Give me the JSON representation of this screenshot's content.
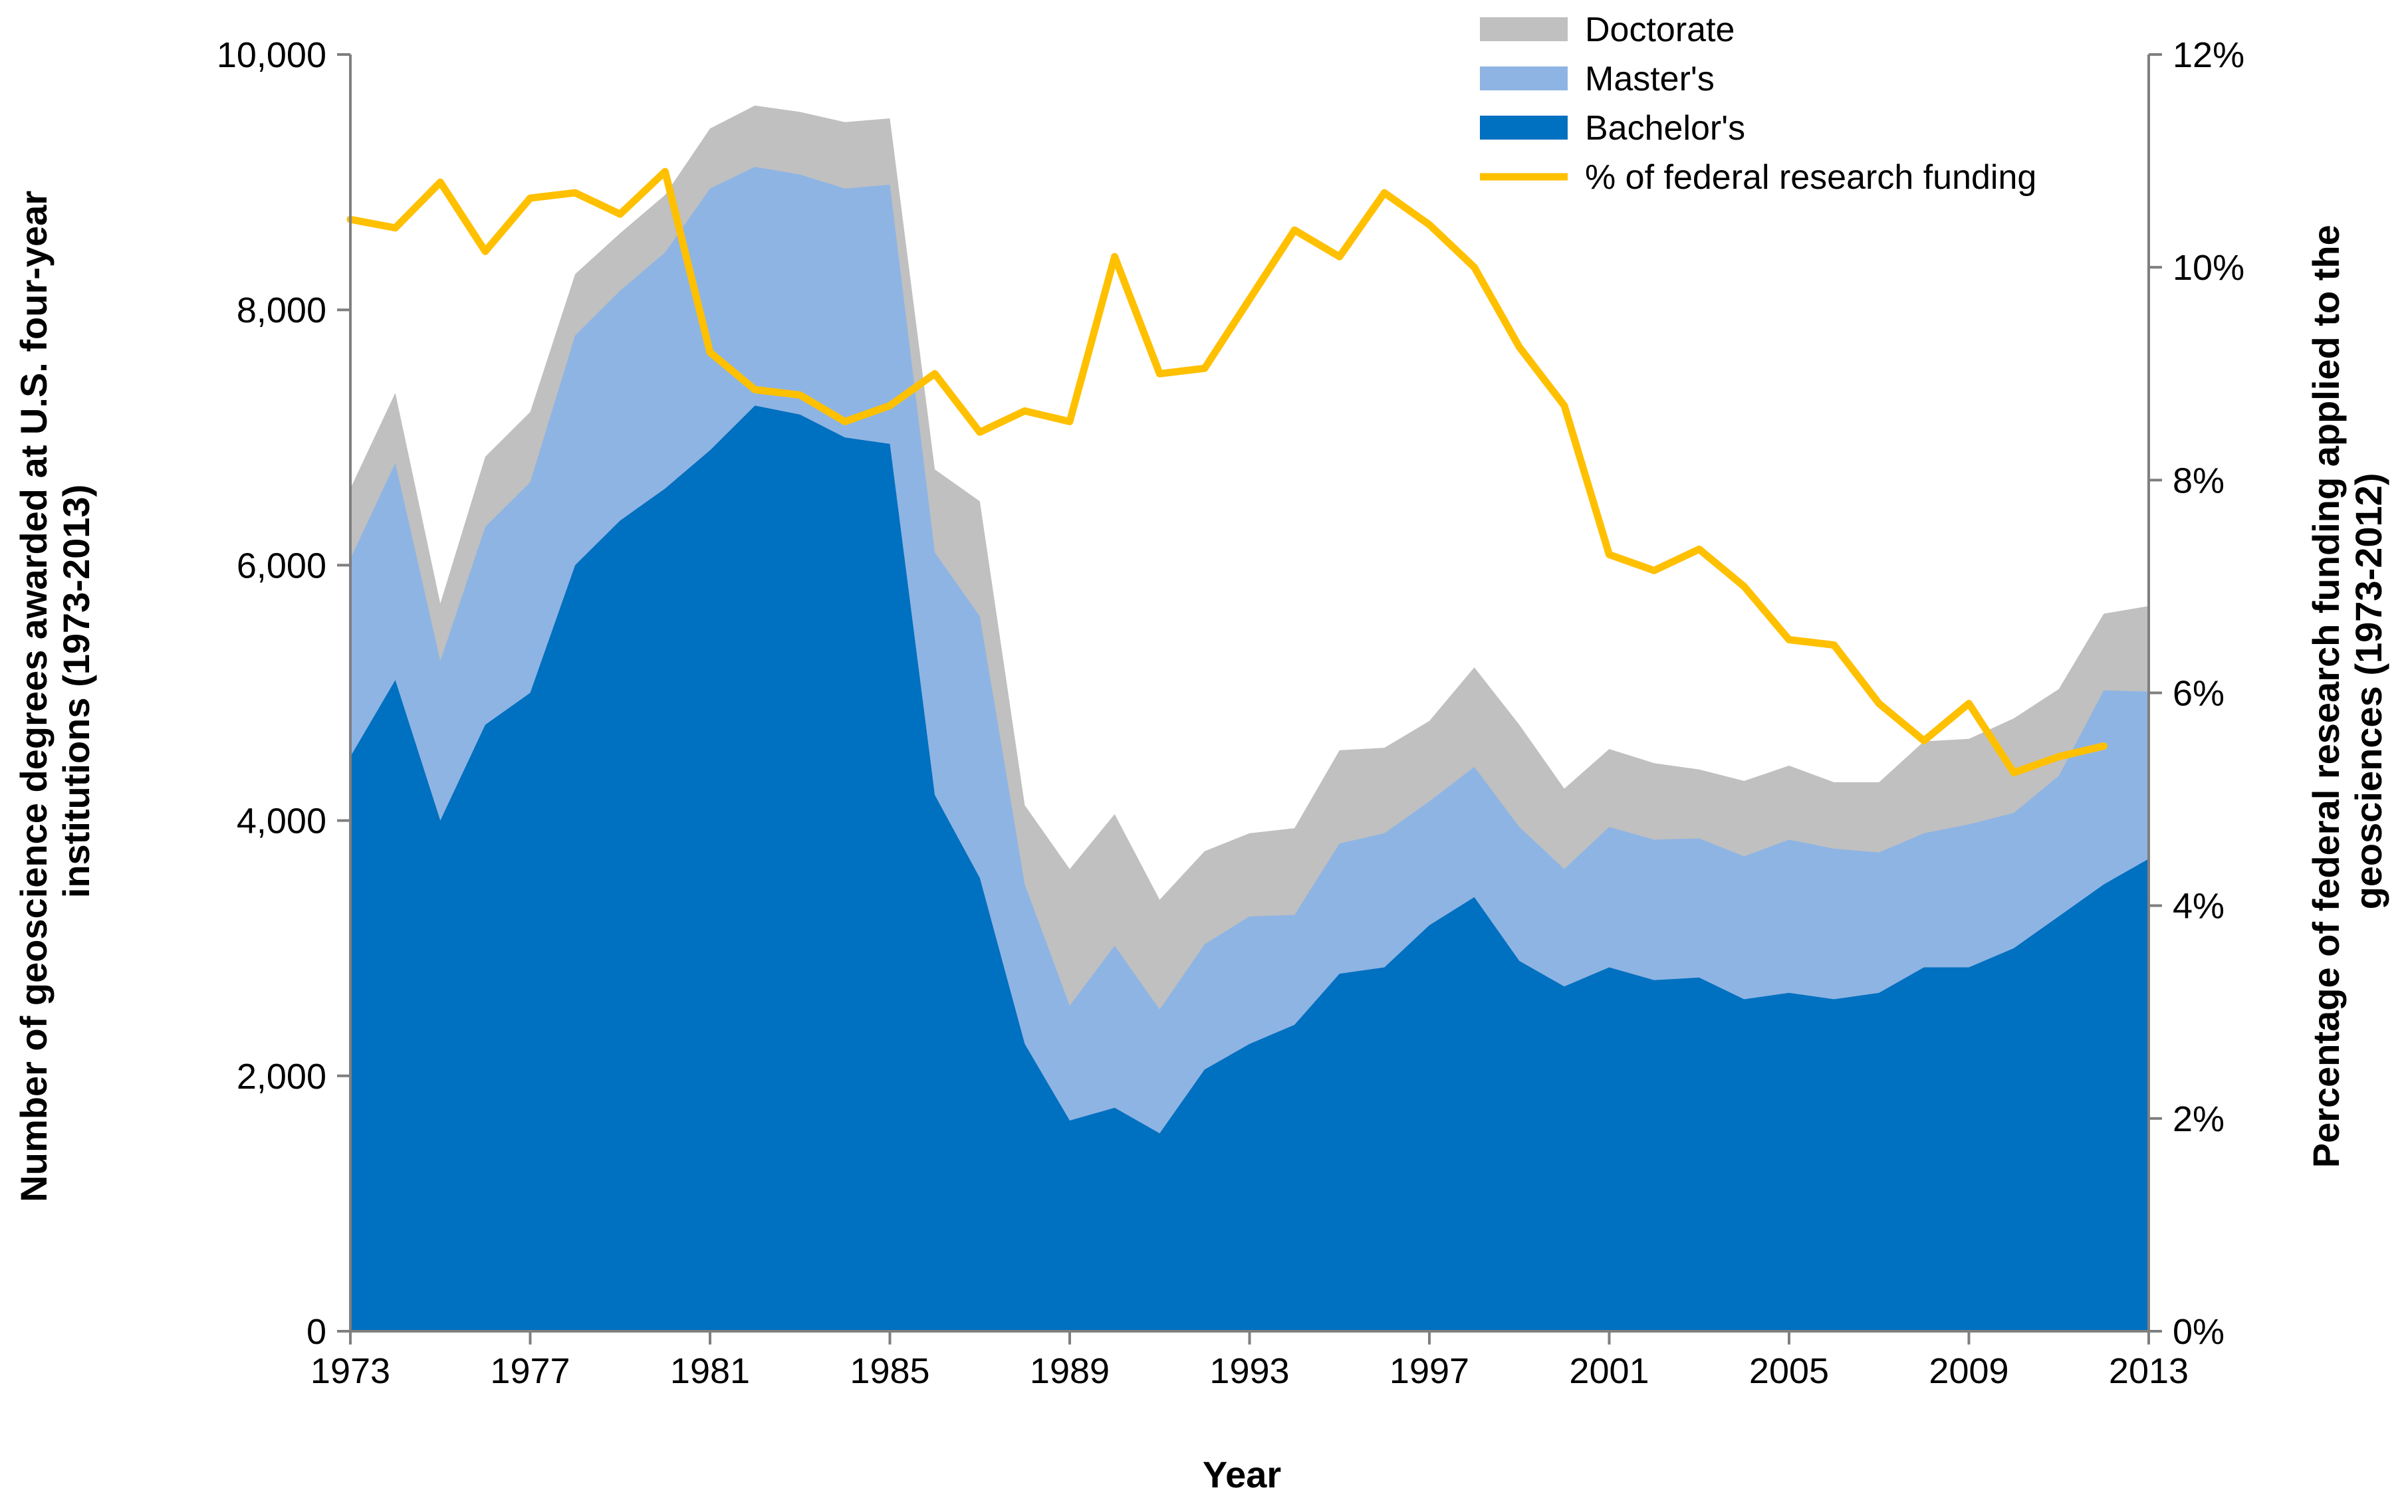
{
  "chart_data": {
    "type": "area",
    "title": "",
    "xlabel": "Year",
    "ylabel": "Number of geoscience degrees awarded at U.S. four-year institutions (1973-2013)",
    "ylabel_lines": [
      "Number of geoscience degrees awarded at U.S. four-year",
      "institutions (1973-2013)"
    ],
    "y2label": "Percentage of federal research funding applied to the geosciences (1973-2012)",
    "y2label_lines": [
      "Percentage of federal research funding applied to the",
      "geosciences (1973-2012)"
    ],
    "xlim": [
      1973,
      2013
    ],
    "ylim": [
      0,
      10000
    ],
    "y2lim": [
      0,
      12
    ],
    "x_ticks": [
      "1973",
      "1977",
      "1981",
      "1985",
      "1989",
      "1993",
      "1997",
      "2001",
      "2005",
      "2009",
      "2013"
    ],
    "x_tick_values": [
      1973,
      1977,
      1981,
      1985,
      1989,
      1993,
      1997,
      2001,
      2005,
      2009,
      2013
    ],
    "y_ticks": [
      "0",
      "2,000",
      "4,000",
      "6,000",
      "8,000",
      "10,000"
    ],
    "y_tick_values": [
      0,
      2000,
      4000,
      6000,
      8000,
      10000
    ],
    "y2_ticks": [
      "0%",
      "2%",
      "4%",
      "6%",
      "8%",
      "10%",
      "12%"
    ],
    "y2_tick_values": [
      0,
      2,
      4,
      6,
      8,
      10,
      12
    ],
    "legend_position": "top-center",
    "x": [
      1973,
      1974,
      1975,
      1976,
      1977,
      1978,
      1979,
      1980,
      1981,
      1982,
      1983,
      1984,
      1985,
      1986,
      1987,
      1988,
      1989,
      1990,
      1991,
      1992,
      1993,
      1994,
      1995,
      1996,
      1997,
      1998,
      1999,
      2000,
      2001,
      2002,
      2003,
      2004,
      2005,
      2006,
      2007,
      2008,
      2009,
      2010,
      2011,
      2012,
      2013
    ],
    "stack_totals": {
      "Bachelor's": [
        4500,
        5100,
        4000,
        4750,
        5000,
        6000,
        6350,
        6600,
        6900,
        7250,
        7180,
        7000,
        6950,
        4200,
        3550,
        2250,
        1650,
        1750,
        1550,
        2050,
        2250,
        2400,
        2800,
        2850,
        3180,
        3400,
        2900,
        2700,
        2850,
        2750,
        2770,
        2600,
        2650,
        2600,
        2650,
        2850,
        2850,
        3000,
        3250,
        3500,
        3700
      ],
      "Master's": [
        6050,
        6800,
        5250,
        6300,
        6650,
        7800,
        8150,
        8450,
        8950,
        9120,
        9060,
        8950,
        8980,
        6100,
        5600,
        3500,
        2550,
        3020,
        2520,
        3030,
        3250,
        3260,
        3820,
        3900,
        4150,
        4420,
        3950,
        3620,
        3950,
        3850,
        3860,
        3720,
        3850,
        3780,
        3750,
        3900,
        3970,
        4060,
        4350,
        5020,
        5010
      ],
      "Doctorate": [
        6600,
        7350,
        5700,
        6850,
        7200,
        8280,
        8600,
        8900,
        9420,
        9600,
        9550,
        9470,
        9500,
        6750,
        6500,
        4120,
        3620,
        4050,
        3380,
        3760,
        3900,
        3940,
        4550,
        4570,
        4780,
        5200,
        4750,
        4250,
        4560,
        4450,
        4400,
        4310,
        4430,
        4300,
        4300,
        4620,
        4640,
        4800,
        5030,
        5620,
        5680
      ]
    },
    "series": [
      {
        "name": "Doctorate",
        "color": "#C0C0C0"
      },
      {
        "name": "Master's",
        "color": "#8EB4E3"
      },
      {
        "name": "Bachelor's",
        "color": "#0070C0"
      },
      {
        "name": "% of federal research funding",
        "color": "#FFC000",
        "axis": "y2",
        "x": [
          1973,
          1974,
          1975,
          1976,
          1977,
          1978,
          1979,
          1980,
          1981,
          1982,
          1983,
          1984,
          1985,
          1986,
          1987,
          1988,
          1989,
          1990,
          1991,
          1992,
          1993,
          1994,
          1995,
          1996,
          1997,
          1998,
          1999,
          2000,
          2001,
          2002,
          2003,
          2004,
          2005,
          2006,
          2007,
          2008,
          2009,
          2010,
          2011,
          2012
        ],
        "values": [
          10.45,
          10.37,
          10.8,
          10.15,
          10.65,
          10.7,
          10.5,
          10.9,
          9.2,
          8.85,
          8.8,
          8.55,
          8.7,
          9.0,
          8.45,
          8.65,
          8.55,
          10.1,
          9.0,
          9.05,
          9.7,
          10.35,
          10.1,
          10.7,
          10.4,
          10.0,
          9.25,
          8.7,
          7.3,
          7.15,
          7.35,
          7.0,
          6.5,
          6.45,
          5.9,
          5.55,
          5.9,
          5.25,
          5.4,
          5.5
        ]
      }
    ]
  }
}
